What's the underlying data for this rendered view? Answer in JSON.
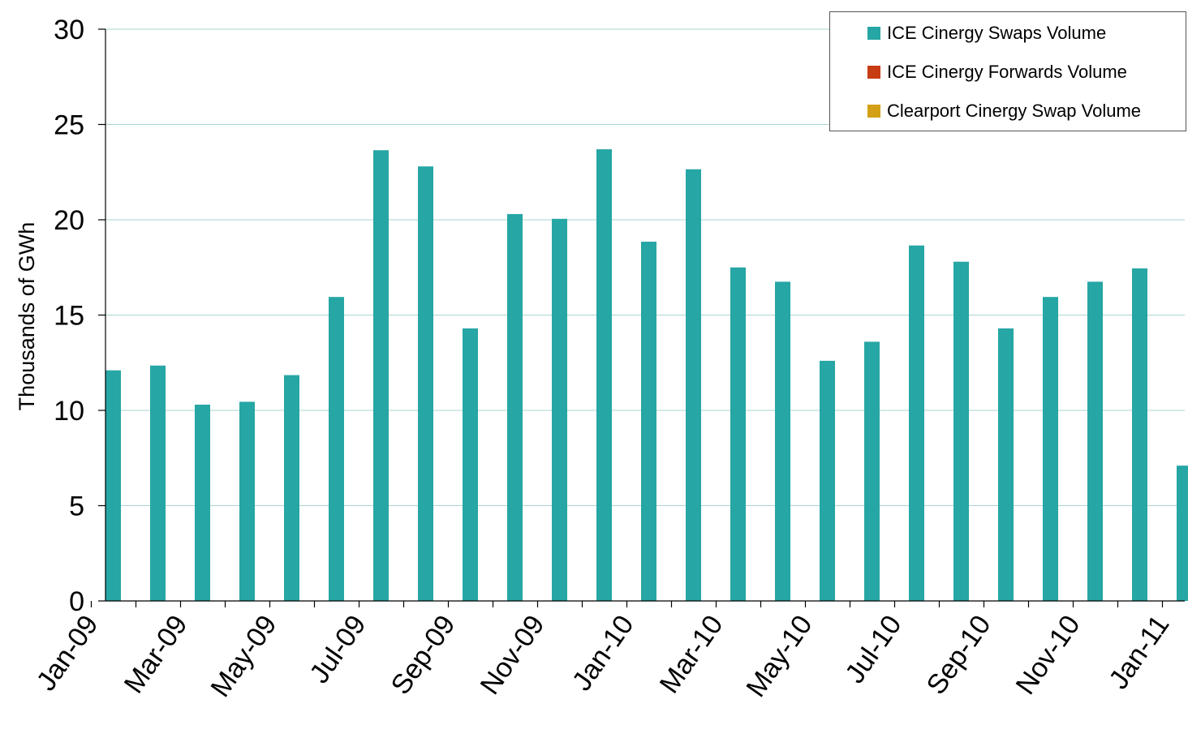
{
  "chart_data": {
    "type": "bar",
    "title": "",
    "xlabel": "",
    "ylabel": "Thousands of GWh",
    "ylim": [
      0,
      30
    ],
    "yticks": [
      0,
      5,
      10,
      15,
      20,
      25,
      30
    ],
    "grid": true,
    "legend_position": "top-right",
    "categories": [
      "Jan-09",
      "Feb-09",
      "Mar-09",
      "Apr-09",
      "May-09",
      "Jun-09",
      "Jul-09",
      "Aug-09",
      "Sep-09",
      "Oct-09",
      "Nov-09",
      "Dec-09",
      "Jan-10",
      "Feb-10",
      "Mar-10",
      "Apr-10",
      "May-10",
      "Jun-10",
      "Jul-10",
      "Aug-10",
      "Sep-10",
      "Oct-10",
      "Nov-10",
      "Dec-10",
      "Jan-11"
    ],
    "x_tick_labels": [
      "Jan-09",
      "Mar-09",
      "May-09",
      "Jul-09",
      "Sep-09",
      "Nov-09",
      "Jan-10",
      "Mar-10",
      "May-10",
      "Jul-10",
      "Sep-10",
      "Nov-10",
      "Jan-11"
    ],
    "series": [
      {
        "name": "ICE Cinergy Swaps Volume",
        "color": "#26a6a4",
        "values": [
          12.1,
          12.35,
          10.3,
          10.45,
          11.85,
          15.95,
          23.65,
          22.8,
          14.3,
          20.3,
          20.05,
          23.7,
          18.85,
          22.65,
          17.5,
          16.75,
          12.6,
          13.6,
          18.65,
          17.8,
          14.3,
          15.95,
          16.75,
          17.45,
          7.1
        ]
      },
      {
        "name": "ICE Cinergy Forwards Volume",
        "color": "#c83c14",
        "values": [
          0,
          0,
          0,
          0,
          0,
          0,
          0,
          0,
          0,
          0,
          0,
          0,
          0,
          0,
          0,
          0,
          0,
          0,
          0,
          0,
          0,
          0,
          0,
          0,
          0
        ]
      },
      {
        "name": "Clearport Cinergy Swap Volume",
        "color": "#d4a017",
        "values": [
          0,
          0,
          0,
          0,
          0,
          0,
          0,
          0,
          0,
          0,
          0,
          0,
          0,
          0,
          0,
          0,
          0,
          0,
          0,
          0,
          0,
          0,
          0,
          0,
          0
        ]
      }
    ]
  }
}
